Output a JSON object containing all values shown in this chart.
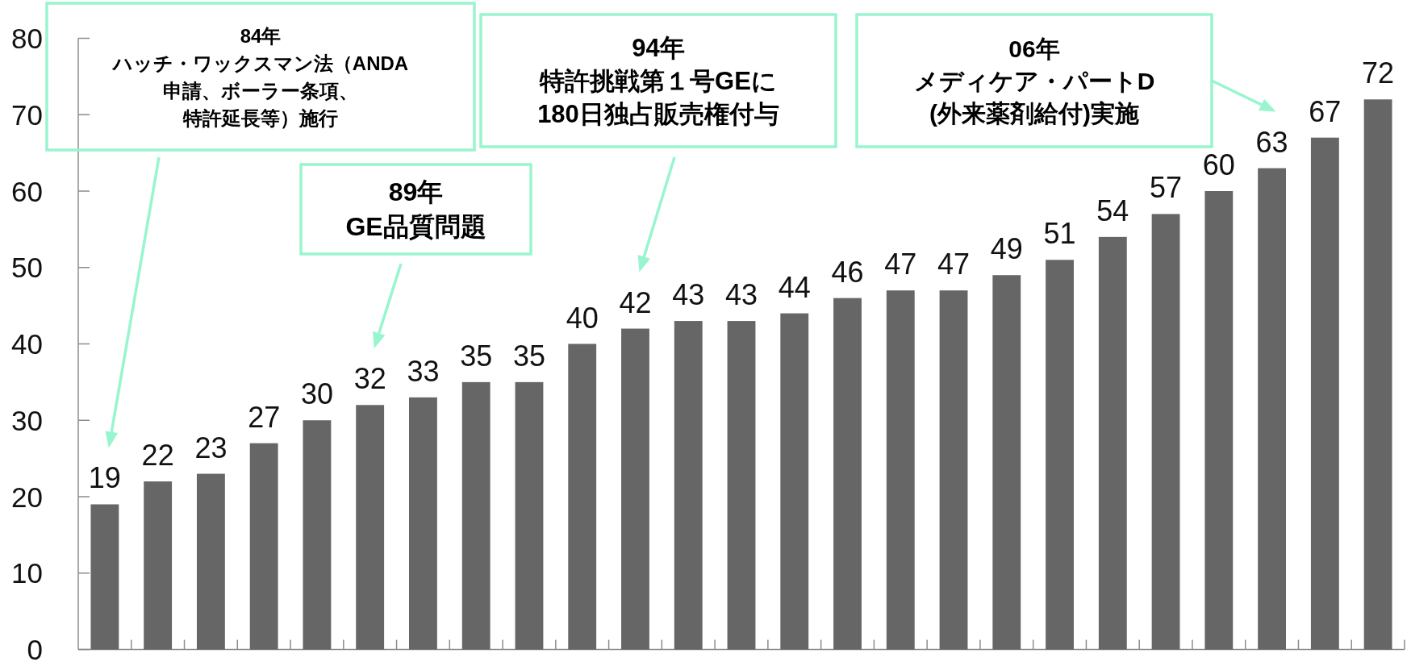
{
  "chart_data": {
    "type": "bar",
    "categories": [
      null,
      null,
      null,
      null,
      null,
      null,
      null,
      null,
      null,
      null,
      null,
      null,
      null,
      null,
      null,
      null,
      null,
      null,
      null,
      null,
      null,
      null,
      null,
      null,
      null
    ],
    "values": [
      19,
      22,
      23,
      27,
      30,
      32,
      33,
      35,
      35,
      40,
      42,
      43,
      43,
      44,
      46,
      47,
      47,
      49,
      51,
      54,
      57,
      60,
      63,
      67,
      72
    ],
    "color": "#666666",
    "ylim": [
      0,
      80
    ],
    "yticks": [
      0,
      10,
      20,
      30,
      40,
      50,
      60,
      70,
      80
    ],
    "data_labels": true,
    "tick_labels": "y",
    "annotations": [
      "84年ハッチ・ワックスマン法（ANDA申請、ボーラー条項、特許延長等）施行",
      "89年GE品質問題",
      "94年特許挑戦第１号GEに180日独占販売権付与",
      "06年メディケア・パートD(外来薬剤給付)実施"
    ]
  }
}
